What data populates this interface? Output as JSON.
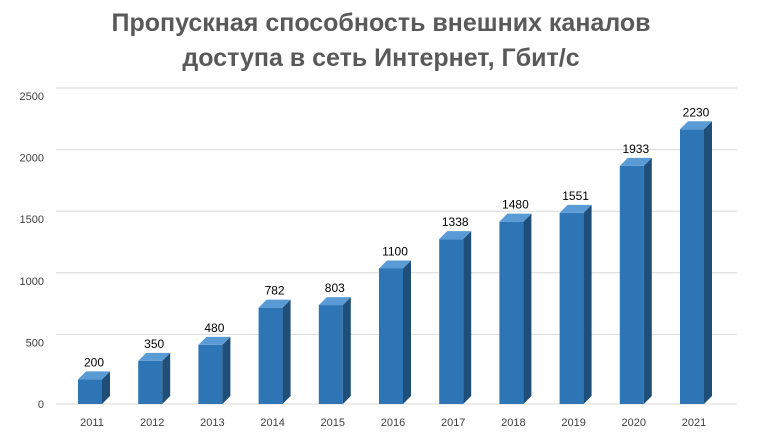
{
  "chart_data": {
    "type": "bar",
    "title_line1": "Пропускная способность внешних каналов",
    "title_line2": "доступа в сеть Интернет, Гбит/с",
    "xlabel": "",
    "ylabel": "",
    "categories": [
      "2011",
      "2012",
      "2013",
      "2014",
      "2015",
      "2016",
      "2017",
      "2018",
      "2019",
      "2020",
      "2021"
    ],
    "values": [
      200,
      350,
      480,
      782,
      803,
      1100,
      1338,
      1480,
      1551,
      1933,
      2230
    ],
    "ylim": [
      0,
      2500
    ],
    "yticks": [
      0,
      500,
      1000,
      1500,
      2000,
      2500
    ],
    "grid": true,
    "legend": "none",
    "style": "3d-column",
    "colors": {
      "bar_front": "#2e75b6",
      "bar_side": "#1f4e79",
      "bar_top": "#5b9bd5",
      "grid": "#d9d9d9",
      "title": "#595959"
    }
  }
}
